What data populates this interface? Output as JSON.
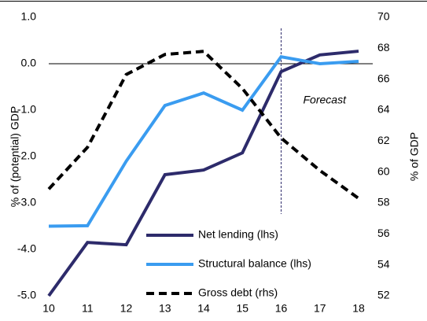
{
  "chart_data": {
    "type": "line",
    "categories": [
      "10",
      "11",
      "12",
      "13",
      "14",
      "15",
      "16",
      "17",
      "18"
    ],
    "series": [
      {
        "name": "Net lending (lhs)",
        "color": "#2d2b6b",
        "dash": false,
        "axis": "y",
        "values": [
          -5.0,
          -3.85,
          -3.9,
          -2.39,
          -2.29,
          -1.92,
          -0.17,
          0.19,
          0.27
        ]
      },
      {
        "name": "Structural balance (lhs)",
        "color": "#3a9cf0",
        "dash": false,
        "axis": "y",
        "values": [
          -3.5,
          -3.49,
          -2.1,
          -0.9,
          -0.63,
          -1.0,
          0.15,
          0.0,
          0.05
        ]
      },
      {
        "name": "Gross debt (rhs)",
        "color": "#000000",
        "dash": true,
        "axis": "y2",
        "values": [
          58.9,
          61.6,
          66.3,
          67.6,
          67.8,
          65.4,
          62.2,
          60.1,
          58.3
        ]
      }
    ],
    "ylabel": "% of (potential) GDP",
    "y2label": "% of GDP",
    "ylim": [
      -5.0,
      1.0
    ],
    "yticks": [
      {
        "value": 1.0,
        "label": "1.0"
      },
      {
        "value": 0.0,
        "label": "0.0"
      },
      {
        "value": -1.0,
        "label": "-1.0"
      },
      {
        "value": -2.0,
        "label": "-2.0"
      },
      {
        "value": -3.0,
        "label": "-3.0"
      },
      {
        "value": -4.0,
        "label": "-4.0"
      },
      {
        "value": -5.0,
        "label": "-5.0"
      }
    ],
    "y2lim": [
      52,
      70
    ],
    "y2ticks": [
      70,
      68,
      66,
      64,
      62,
      60,
      58,
      56,
      54,
      52
    ],
    "forecast": {
      "at": "16",
      "label": "Forecast"
    }
  }
}
